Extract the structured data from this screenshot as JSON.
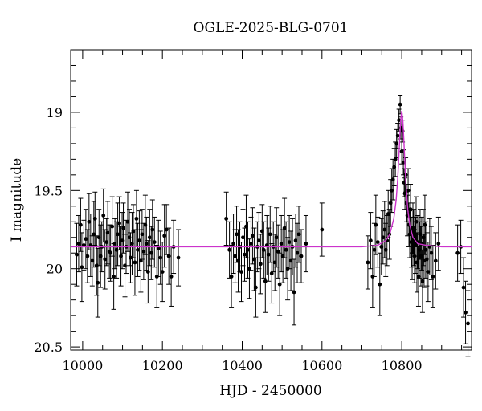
{
  "chart_data": {
    "type": "scatter",
    "title": "OGLE-2025-BLG-0701",
    "xlabel": "HJD - 2450000",
    "ylabel": "I magnitude",
    "xlim": [
      9970,
      10975
    ],
    "ylim": [
      20.52,
      18.6
    ],
    "y_inverted": true,
    "x_major_ticks": [
      10000,
      10200,
      10400,
      10600,
      10800
    ],
    "x_tick_labels": [
      "10000",
      "10200",
      "10400",
      "10600",
      "10800"
    ],
    "y_major_ticks": [
      19,
      19.5,
      20,
      20.5
    ],
    "y_tick_labels": [
      "19",
      "19.5",
      "20",
      "20.5"
    ],
    "grid": false,
    "baseline_mag": 19.86,
    "series": [
      {
        "kind": "photometry",
        "points": [
          [
            9985,
            19.91,
            0.2
          ],
          [
            9990,
            19.84,
            0.18
          ],
          [
            9995,
            19.72,
            0.17
          ],
          [
            9998,
            19.99,
            0.22
          ],
          [
            10003,
            19.85,
            0.16
          ],
          [
            10008,
            19.81,
            0.19
          ],
          [
            10012,
            19.92,
            0.17
          ],
          [
            10016,
            19.7,
            0.18
          ],
          [
            10020,
            19.85,
            0.2
          ],
          [
            10024,
            19.95,
            0.16
          ],
          [
            10028,
            19.78,
            0.21
          ],
          [
            10031,
            19.68,
            0.17
          ],
          [
            10035,
            19.98,
            0.19
          ],
          [
            10038,
            20.09,
            0.22
          ],
          [
            10041,
            19.8,
            0.18
          ],
          [
            10045,
            19.92,
            0.2
          ],
          [
            10048,
            19.86,
            0.16
          ],
          [
            10052,
            19.66,
            0.17
          ],
          [
            10056,
            19.94,
            0.19
          ],
          [
            10060,
            19.83,
            0.15
          ],
          [
            10063,
            19.77,
            0.2
          ],
          [
            10067,
            19.89,
            0.17
          ],
          [
            10070,
            19.9,
            0.18
          ],
          [
            10074,
            19.73,
            0.19
          ],
          [
            10078,
            20.05,
            0.21
          ],
          [
            10081,
            19.84,
            0.16
          ],
          [
            10085,
            19.88,
            0.18
          ],
          [
            10088,
            19.78,
            0.2
          ],
          [
            10092,
            19.71,
            0.17
          ],
          [
            10096,
            19.92,
            0.19
          ],
          [
            10099,
            19.82,
            0.18
          ],
          [
            10102,
            19.74,
            0.16
          ],
          [
            10106,
            19.98,
            0.2
          ],
          [
            10109,
            19.86,
            0.17
          ],
          [
            10113,
            19.7,
            0.19
          ],
          [
            10117,
            19.8,
            0.18
          ],
          [
            10120,
            19.93,
            0.16
          ],
          [
            10124,
            19.84,
            0.2
          ],
          [
            10127,
            19.76,
            0.17
          ],
          [
            10131,
            19.96,
            0.21
          ],
          [
            10135,
            19.68,
            0.18
          ],
          [
            10138,
            19.88,
            0.17
          ],
          [
            10142,
            19.82,
            0.19
          ],
          [
            10146,
            19.95,
            0.2
          ],
          [
            10149,
            19.78,
            0.16
          ],
          [
            10153,
            19.89,
            0.18
          ],
          [
            10157,
            19.72,
            0.19
          ],
          [
            10160,
            19.84,
            0.17
          ],
          [
            10164,
            20.02,
            0.2
          ],
          [
            10168,
            19.8,
            0.18
          ],
          [
            10172,
            19.9,
            0.17
          ],
          [
            10175,
            19.75,
            0.19
          ],
          [
            10180,
            19.83,
            0.16
          ],
          [
            10186,
            20.05,
            0.2
          ],
          [
            10190,
            19.87,
            0.18
          ],
          [
            10195,
            19.93,
            0.17
          ],
          [
            10200,
            20.02,
            0.19
          ],
          [
            10205,
            19.79,
            0.2
          ],
          [
            10210,
            19.75,
            0.16
          ],
          [
            10216,
            19.92,
            0.18
          ],
          [
            10222,
            20.05,
            0.19
          ],
          [
            10228,
            19.86,
            0.17
          ],
          [
            10240,
            19.93,
            0.18
          ],
          [
            10360,
            19.68,
            0.17
          ],
          [
            10368,
            19.88,
            0.18
          ],
          [
            10373,
            20.05,
            0.2
          ],
          [
            10378,
            19.84,
            0.19
          ],
          [
            10382,
            19.92,
            0.17
          ],
          [
            10386,
            19.78,
            0.18
          ],
          [
            10390,
            19.95,
            0.2
          ],
          [
            10394,
            19.86,
            0.16
          ],
          [
            10398,
            20.02,
            0.19
          ],
          [
            10402,
            19.8,
            0.18
          ],
          [
            10406,
            19.91,
            0.17
          ],
          [
            10410,
            19.73,
            0.2
          ],
          [
            10414,
            19.88,
            0.18
          ],
          [
            10418,
            20.0,
            0.19
          ],
          [
            10422,
            19.84,
            0.17
          ],
          [
            10426,
            19.79,
            0.18
          ],
          [
            10430,
            19.94,
            0.2
          ],
          [
            10434,
            20.12,
            0.19
          ],
          [
            10438,
            19.86,
            0.16
          ],
          [
            10442,
            19.82,
            0.18
          ],
          [
            10446,
            19.97,
            0.19
          ],
          [
            10450,
            19.76,
            0.17
          ],
          [
            10454,
            19.88,
            0.18
          ],
          [
            10458,
            20.08,
            0.2
          ],
          [
            10462,
            19.85,
            0.19
          ],
          [
            10466,
            19.91,
            0.17
          ],
          [
            10470,
            19.78,
            0.18
          ],
          [
            10474,
            20.03,
            0.19
          ],
          [
            10478,
            19.86,
            0.16
          ],
          [
            10482,
            19.96,
            0.18
          ],
          [
            10486,
            19.8,
            0.19
          ],
          [
            10490,
            19.89,
            0.17
          ],
          [
            10494,
            20.1,
            0.2
          ],
          [
            10498,
            19.84,
            0.18
          ],
          [
            10502,
            19.92,
            0.17
          ],
          [
            10506,
            19.74,
            0.19
          ],
          [
            10510,
            19.88,
            0.18
          ],
          [
            10514,
            20.0,
            0.2
          ],
          [
            10518,
            19.83,
            0.17
          ],
          [
            10522,
            19.95,
            0.19
          ],
          [
            10526,
            19.86,
            0.18
          ],
          [
            10530,
            20.15,
            0.21
          ],
          [
            10534,
            19.82,
            0.17
          ],
          [
            10538,
            19.9,
            0.19
          ],
          [
            10542,
            19.78,
            0.18
          ],
          [
            10548,
            19.92,
            0.17
          ],
          [
            10560,
            19.84,
            0.18
          ],
          [
            10600,
            19.75,
            0.17
          ],
          [
            10715,
            19.96,
            0.17
          ],
          [
            10722,
            19.82,
            0.18
          ],
          [
            10727,
            20.05,
            0.2
          ],
          [
            10731,
            19.88,
            0.17
          ],
          [
            10735,
            19.72,
            0.19
          ],
          [
            10740,
            19.83,
            0.16
          ],
          [
            10745,
            20.1,
            0.2
          ],
          [
            10749,
            19.86,
            0.18
          ],
          [
            10753,
            19.8,
            0.17
          ],
          [
            10757,
            19.75,
            0.18
          ],
          [
            10760,
            19.88,
            0.17
          ],
          [
            10763,
            19.82,
            0.16
          ],
          [
            10766,
            19.65,
            0.15
          ],
          [
            10769,
            19.78,
            0.16
          ],
          [
            10772,
            19.58,
            0.15
          ],
          [
            10775,
            19.5,
            0.14
          ],
          [
            10778,
            19.43,
            0.13
          ],
          [
            10781,
            19.35,
            0.12
          ],
          [
            10784,
            19.3,
            0.11
          ],
          [
            10787,
            19.2,
            0.09
          ],
          [
            10790,
            19.15,
            0.08
          ],
          [
            10793,
            19.05,
            0.07
          ],
          [
            10796,
            18.95,
            0.06
          ],
          [
            10798,
            19.1,
            0.07
          ],
          [
            10800,
            19.25,
            0.08
          ],
          [
            10802,
            19.12,
            0.07
          ],
          [
            10804,
            19.32,
            0.08
          ],
          [
            10806,
            19.45,
            0.09
          ],
          [
            10808,
            19.52,
            0.1
          ],
          [
            10810,
            19.4,
            0.11
          ],
          [
            10812,
            19.58,
            0.12
          ],
          [
            10814,
            19.66,
            0.13
          ],
          [
            10816,
            19.5,
            0.14
          ],
          [
            10818,
            19.72,
            0.14
          ],
          [
            10820,
            19.78,
            0.15
          ],
          [
            10822,
            19.62,
            0.16
          ],
          [
            10824,
            19.83,
            0.16
          ],
          [
            10826,
            19.9,
            0.17
          ],
          [
            10828,
            19.74,
            0.16
          ],
          [
            10830,
            19.8,
            0.18
          ],
          [
            10832,
            19.92,
            0.17
          ],
          [
            10834,
            19.85,
            0.18
          ],
          [
            10836,
            19.7,
            0.16
          ],
          [
            10838,
            19.96,
            0.19
          ],
          [
            10840,
            19.83,
            0.17
          ],
          [
            10842,
            20.05,
            0.19
          ],
          [
            10844,
            19.88,
            0.18
          ],
          [
            10846,
            19.78,
            0.16
          ],
          [
            10848,
            19.92,
            0.19
          ],
          [
            10850,
            19.84,
            0.17
          ],
          [
            10852,
            20.08,
            0.2
          ],
          [
            10854,
            19.8,
            0.18
          ],
          [
            10856,
            19.95,
            0.17
          ],
          [
            10858,
            19.72,
            0.19
          ],
          [
            10860,
            19.88,
            0.18
          ],
          [
            10863,
            19.94,
            0.17
          ],
          [
            10866,
            20.02,
            0.19
          ],
          [
            10870,
            19.86,
            0.18
          ],
          [
            10874,
            19.9,
            0.17
          ],
          [
            10878,
            20.05,
            0.2
          ],
          [
            10885,
            19.95,
            0.18
          ],
          [
            10892,
            19.84,
            0.17
          ],
          [
            10940,
            19.9,
            0.18
          ],
          [
            10948,
            19.86,
            0.17
          ],
          [
            10955,
            20.12,
            0.19
          ],
          [
            10960,
            20.28,
            0.2
          ],
          [
            10966,
            20.35,
            0.21
          ]
        ]
      },
      {
        "kind": "model",
        "baseline": 19.86,
        "x": [
          9970,
          10700,
          10740,
          10760,
          10770,
          10780,
          10786,
          10790,
          10794,
          10797,
          10800,
          10803,
          10806,
          10810,
          10815,
          10820,
          10828,
          10840,
          10860,
          10900,
          10975
        ],
        "y": [
          19.86,
          19.86,
          19.85,
          19.82,
          19.78,
          19.68,
          19.56,
          19.42,
          19.22,
          19.06,
          18.99,
          19.06,
          19.22,
          19.44,
          19.62,
          19.72,
          19.8,
          19.84,
          19.85,
          19.86,
          19.86
        ]
      }
    ]
  }
}
